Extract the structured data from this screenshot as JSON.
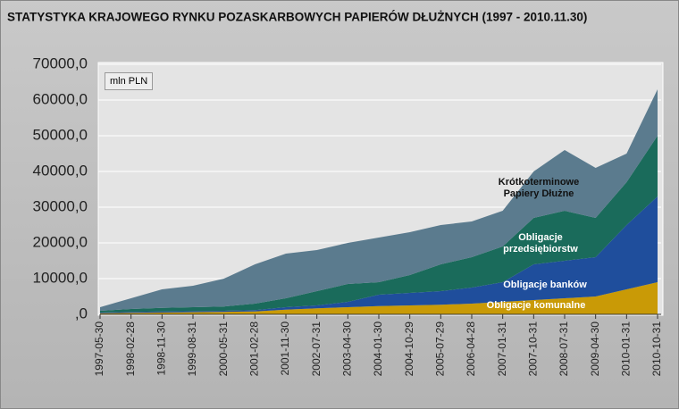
{
  "chart_data": {
    "type": "stacked_area",
    "title": "STATYSTYKA KRAJOWEGO RYNKU POZASKARBOWYCH PAPIERÓW DŁUŻNYCH (1997 - 2010.11.30)",
    "unit_label": "mln PLN",
    "categories": [
      "1997-05-30",
      "1998-02-28",
      "1998-11-30",
      "1999-08-31",
      "2000-05-31",
      "2001-02-28",
      "2001-11-30",
      "2002-07-31",
      "2003-04-30",
      "2004-01-30",
      "2004-10-29",
      "2005-07-29",
      "2006-04-28",
      "2007-01-31",
      "2007-10-31",
      "2008-07-31",
      "2009-04-30",
      "2010-01-31",
      "2010-10-31"
    ],
    "series": [
      {
        "name": "Obligacje komunalne",
        "color": "#c99a06",
        "values": [
          300,
          400,
          500,
          600,
          700,
          800,
          1300,
          1700,
          2000,
          2300,
          2500,
          2700,
          3000,
          3500,
          4000,
          4500,
          5000,
          7000,
          9000
        ]
      },
      {
        "name": "Obligacje banków",
        "color": "#1f4e9c",
        "values": [
          200,
          300,
          300,
          300,
          300,
          400,
          700,
          800,
          1500,
          3200,
          3500,
          3800,
          4500,
          5500,
          10000,
          10500,
          11000,
          18000,
          24000
        ]
      },
      {
        "name": "Obligacje przedsiębiorstw",
        "color": "#1a6b5b",
        "values": [
          500,
          800,
          1000,
          1100,
          1200,
          1800,
          2500,
          4000,
          5000,
          3500,
          5000,
          7500,
          8500,
          10000,
          13000,
          14000,
          11000,
          12000,
          17000
        ]
      },
      {
        "name": "Krótkoterminowe Papiery Dłużne",
        "color": "#5b7b8e",
        "values": [
          1000,
          3000,
          5200,
          6000,
          7800,
          11000,
          12500,
          11500,
          11500,
          12500,
          12000,
          11000,
          10000,
          10000,
          13000,
          17000,
          14000,
          8000,
          13000
        ]
      }
    ],
    "ylim": [
      0,
      70000
    ],
    "yticks": [
      {
        "value": 0,
        "label": ",0"
      },
      {
        "value": 10000,
        "label": "10000,0"
      },
      {
        "value": 20000,
        "label": "20000,0"
      },
      {
        "value": 30000,
        "label": "30000,0"
      },
      {
        "value": 40000,
        "label": "40000,0"
      },
      {
        "value": 50000,
        "label": "50000,0"
      },
      {
        "value": 60000,
        "label": "60000,0"
      },
      {
        "value": 70000,
        "label": "70000,0"
      }
    ],
    "grid": true
  }
}
